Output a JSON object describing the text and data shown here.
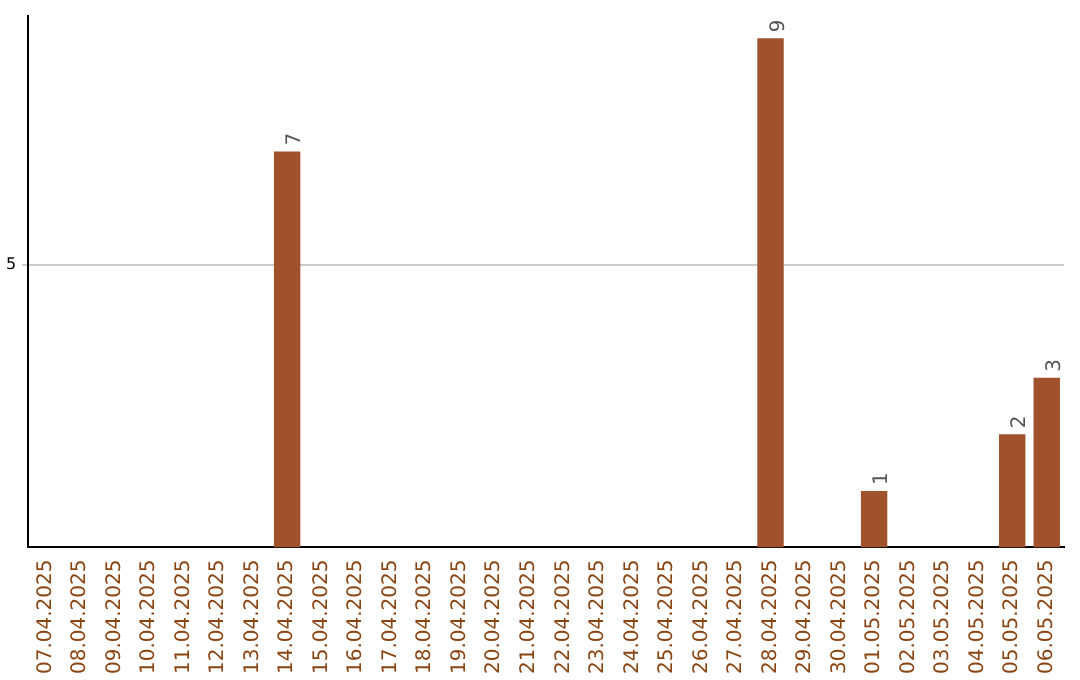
{
  "chart_data": {
    "type": "bar",
    "categories": [
      "07.04.2025",
      "08.04.2025",
      "09.04.2025",
      "10.04.2025",
      "11.04.2025",
      "12.04.2025",
      "13.04.2025",
      "14.04.2025",
      "15.04.2025",
      "16.04.2025",
      "17.04.2025",
      "18.04.2025",
      "19.04.2025",
      "20.04.2025",
      "21.04.2025",
      "22.04.2025",
      "23.04.2025",
      "24.04.2025",
      "25.04.2025",
      "26.04.2025",
      "27.04.2025",
      "28.04.2025",
      "29.04.2025",
      "30.04.2025",
      "01.05.2025",
      "02.05.2025",
      "03.05.2025",
      "04.05.2025",
      "05.05.2025",
      "06.05.2025"
    ],
    "values": [
      0,
      0,
      0,
      0,
      0,
      0,
      0,
      7,
      0,
      0,
      0,
      0,
      0,
      0,
      0,
      0,
      0,
      0,
      0,
      0,
      0,
      9,
      0,
      0,
      1,
      0,
      0,
      0,
      2,
      3
    ],
    "value_labels": [
      null,
      null,
      null,
      null,
      null,
      null,
      null,
      "7",
      null,
      null,
      null,
      null,
      null,
      null,
      null,
      null,
      null,
      null,
      null,
      null,
      null,
      "9",
      null,
      null,
      "1",
      null,
      null,
      null,
      "2",
      "3"
    ],
    "color": "#a0522d",
    "ylim": [
      0,
      9.4
    ],
    "yticks": [
      5
    ],
    "grid": "y",
    "legend": false
  }
}
